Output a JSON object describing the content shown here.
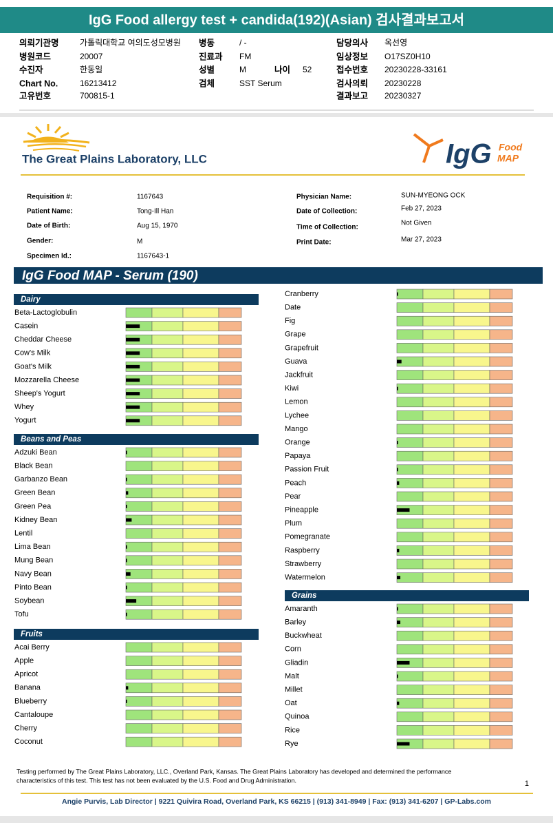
{
  "header": {
    "title": "IgG Food allergy test + candida(192)(Asian) 검사결과보고서"
  },
  "info": [
    {
      "label": "의뢰기관명",
      "value": "가톨릭대학교 여의도성모병원"
    },
    {
      "label": "병동",
      "value": "/ -"
    },
    {
      "label": "담당의사",
      "value": "옥선영"
    },
    {
      "label": "병원코드",
      "value": "20007"
    },
    {
      "label": "진료과",
      "value": "FM"
    },
    {
      "label": "임상정보",
      "value": "O17SZ0H10"
    },
    {
      "label": "수진자",
      "value": "한동일"
    },
    {
      "label": "성별",
      "value": "M"
    },
    {
      "label": "나이",
      "value": "52"
    },
    {
      "label": "접수번호",
      "value": "20230228-33161"
    },
    {
      "label": "Chart No.",
      "value": "16213412"
    },
    {
      "label": "검체",
      "value": "SST Serum"
    },
    {
      "label": "검사의뢰",
      "value": "20230228"
    },
    {
      "label": "고유번호",
      "value": "700815-1"
    },
    {
      "label": "결과보고",
      "value": "20230327"
    }
  ],
  "lab": {
    "name": "The Great Plains Laboratory, LLC",
    "logo_main": "IgG",
    "logo_food": "Food",
    "logo_map": "MAP"
  },
  "patient": [
    {
      "label": "Requisition #:",
      "value": "1167643"
    },
    {
      "label": "Patient Name:",
      "value": "Tong-Ill Han"
    },
    {
      "label": "Date of Birth:",
      "value": "Aug 15, 1970"
    },
    {
      "label": "Gender:",
      "value": "M"
    },
    {
      "label": "Specimen Id.:",
      "value": "1167643-1"
    },
    {
      "label": "Physician Name:",
      "value": "SUN-MYEONG OCK"
    },
    {
      "label": "Date of Collection:",
      "value": "Feb 27, 2023"
    },
    {
      "label": "Time of Collection:",
      "value": "Not Given"
    },
    {
      "label": "Print Date:",
      "value": "Mar 27, 2023"
    }
  ],
  "panel": {
    "title": "IgG Food MAP - Serum (190)",
    "sections": [
      {
        "name": "Dairy",
        "items": [
          {
            "name": "Beta-Lactoglobulin",
            "value": 0
          },
          {
            "name": "Casein",
            "value": 12
          },
          {
            "name": "Cheddar Cheese",
            "value": 12
          },
          {
            "name": "Cow's Milk",
            "value": 12
          },
          {
            "name": "Goat's Milk",
            "value": 12
          },
          {
            "name": "Mozzarella Cheese",
            "value": 12
          },
          {
            "name": "Sheep's Yogurt",
            "value": 12
          },
          {
            "name": "Whey",
            "value": 12
          },
          {
            "name": "Yogurt",
            "value": 12
          }
        ]
      },
      {
        "name": "Beans and Peas",
        "items": [
          {
            "name": "Adzuki Bean",
            "value": 1
          },
          {
            "name": "Black Bean",
            "value": 0
          },
          {
            "name": "Garbanzo Bean",
            "value": 1
          },
          {
            "name": "Green Bean",
            "value": 2
          },
          {
            "name": "Green Pea",
            "value": 1
          },
          {
            "name": "Kidney Bean",
            "value": 5
          },
          {
            "name": "Lentil",
            "value": 0
          },
          {
            "name": "Lima Bean",
            "value": 1
          },
          {
            "name": "Mung Bean",
            "value": 1
          },
          {
            "name": "Navy Bean",
            "value": 4
          },
          {
            "name": "Pinto Bean",
            "value": 1
          },
          {
            "name": "Soybean",
            "value": 9
          },
          {
            "name": "Tofu",
            "value": 1
          }
        ]
      },
      {
        "name": "Fruits",
        "items": [
          {
            "name": "Acai Berry",
            "value": 0
          },
          {
            "name": "Apple",
            "value": 0
          },
          {
            "name": "Apricot",
            "value": 0
          },
          {
            "name": "Banana",
            "value": 2
          },
          {
            "name": "Blueberry",
            "value": 1
          },
          {
            "name": "Cantaloupe",
            "value": 0
          },
          {
            "name": "Cherry",
            "value": 0
          },
          {
            "name": "Coconut",
            "value": 0
          },
          {
            "name": "Cranberry",
            "value": 1
          },
          {
            "name": "Date",
            "value": 0
          },
          {
            "name": "Fig",
            "value": 0
          },
          {
            "name": "Grape",
            "value": 0
          },
          {
            "name": "Grapefruit",
            "value": 0
          },
          {
            "name": "Guava",
            "value": 4
          },
          {
            "name": "Jackfruit",
            "value": 0
          },
          {
            "name": "Kiwi",
            "value": 1
          },
          {
            "name": "Lemon",
            "value": 0
          },
          {
            "name": "Lychee",
            "value": 0
          },
          {
            "name": "Mango",
            "value": 0
          },
          {
            "name": "Orange",
            "value": 1
          },
          {
            "name": "Papaya",
            "value": 0
          },
          {
            "name": "Passion Fruit",
            "value": 1
          },
          {
            "name": "Peach",
            "value": 2
          },
          {
            "name": "Pear",
            "value": 0
          },
          {
            "name": "Pineapple",
            "value": 11
          },
          {
            "name": "Plum",
            "value": 0
          },
          {
            "name": "Pomegranate",
            "value": 0
          },
          {
            "name": "Raspberry",
            "value": 2
          },
          {
            "name": "Strawberry",
            "value": 0
          },
          {
            "name": "Watermelon",
            "value": 3
          }
        ]
      },
      {
        "name": "Grains",
        "items": [
          {
            "name": "Amaranth",
            "value": 1
          },
          {
            "name": "Barley",
            "value": 3
          },
          {
            "name": "Buckwheat",
            "value": 0
          },
          {
            "name": "Corn",
            "value": 0
          },
          {
            "name": "Gliadin",
            "value": 11
          },
          {
            "name": "Malt",
            "value": 1
          },
          {
            "name": "Millet",
            "value": 0
          },
          {
            "name": "Oat",
            "value": 2
          },
          {
            "name": "Quinoa",
            "value": 0
          },
          {
            "name": "Rice",
            "value": 0
          },
          {
            "name": "Rye",
            "value": 11
          }
        ]
      }
    ]
  },
  "footer": {
    "disclaimer": [
      "Testing performed by The Great Plains Laboratory, LLC., Overland Park, Kansas.  The Great Plains Laboratory has developed and determined the performance",
      "characteristics of this test.  This test has not been evaluated by the U.S. Food and Drug Administration."
    ],
    "page": "1",
    "contact": "Angie Purvis, Lab Director  |  9221 Quivira Road, Overland Park, KS 66215  |  (913) 341-8949  |  Fax: (913) 341-6207  |  GP-Labs.com"
  }
}
